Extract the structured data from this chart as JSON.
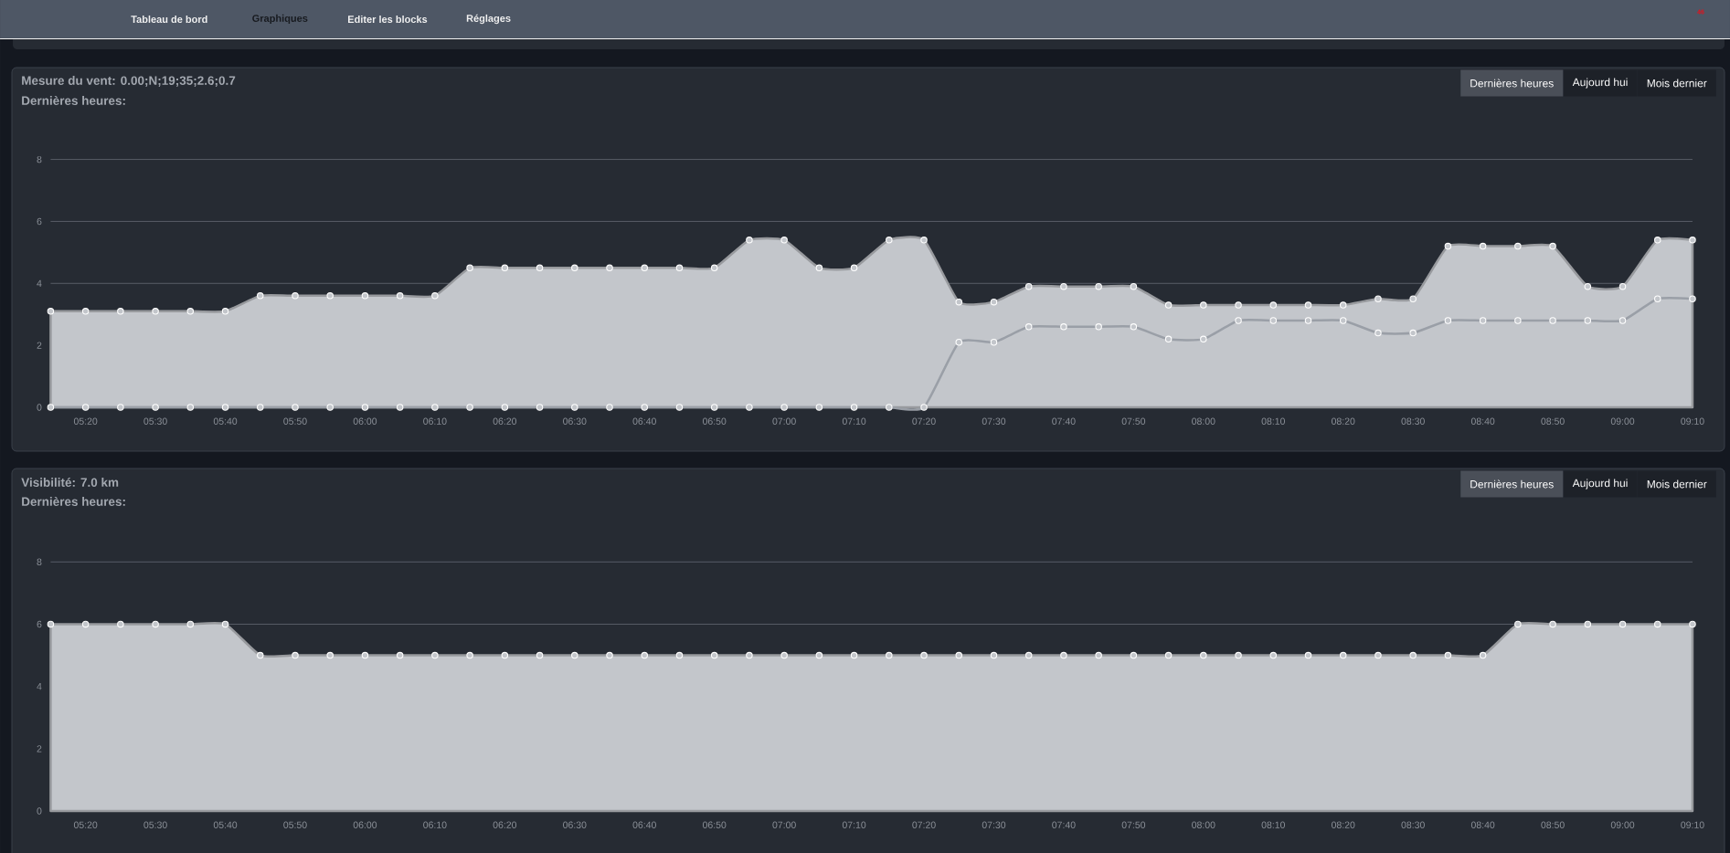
{
  "chart_data": [
    {
      "type": "other",
      "annotations": [
        "Tableau de bord",
        "Graphiques",
        "Editer les blocks",
        "Réglages",
        "46"
      ]
    },
    {
      "type": "area",
      "title": "Mesure du vent: 0.00;N;19;35;2.6;0.7",
      "subtitle": "Dernières heures:",
      "annotations": [
        "Dernières heures",
        "Aujourd hui",
        "Mois dernier"
      ],
      "categories": [
        null,
        "05:20",
        null,
        "05:30",
        null,
        "05:40",
        null,
        "05:50",
        null,
        "06:00",
        null,
        "06:10",
        null,
        "06:20",
        null,
        "06:30",
        null,
        "06:40",
        null,
        "06:50",
        null,
        "07:00",
        null,
        "07:10",
        null,
        "07:20",
        null,
        "07:30",
        null,
        "07:40",
        null,
        "07:50",
        null,
        "08:00",
        null,
        "08:10",
        null,
        "08:20",
        null,
        "08:30",
        null,
        "08:40",
        null,
        "08:50",
        null,
        "09:00",
        null,
        "09:10"
      ],
      "series": [
        {
          "color": "#c3c6cb",
          "values": [
            3.1,
            3.1,
            3.1,
            3.1,
            3.1,
            3.1,
            3.6,
            3.6,
            3.6,
            3.6,
            3.6,
            3.6,
            4.5,
            4.5,
            4.5,
            4.5,
            4.5,
            4.5,
            4.5,
            4.5,
            5.4,
            5.4,
            4.5,
            4.5,
            5.4,
            5.4,
            3.4,
            3.4,
            3.9,
            3.9,
            3.9,
            3.9,
            3.3,
            3.3,
            3.3,
            3.3,
            3.3,
            3.3,
            3.5,
            3.5,
            5.2,
            5.2,
            5.2,
            5.2,
            3.9,
            3.9,
            5.4,
            5.4
          ]
        },
        {
          "type": "line",
          "color": "#9a9fa7",
          "values": [
            0,
            0,
            0,
            0,
            0,
            0,
            0,
            0,
            0,
            0,
            0,
            0,
            0,
            0,
            0,
            0,
            0,
            0,
            0,
            0,
            0,
            0,
            0,
            0,
            0,
            0,
            2.1,
            2.1,
            2.6,
            2.6,
            2.6,
            2.6,
            2.2,
            2.2,
            2.8,
            2.8,
            2.8,
            2.8,
            2.4,
            2.4,
            2.8,
            2.8,
            2.8,
            2.8,
            2.8,
            2.8,
            3.5,
            3.5
          ]
        }
      ],
      "ylim": [
        0,
        8
      ],
      "yticks": [
        0,
        2,
        4,
        6,
        8
      ],
      "grid": "y",
      "marker": "circle",
      "line_style": "solid"
    },
    {
      "type": "area",
      "title": "Visibilité: 7.0 km",
      "subtitle": "Dernières heures:",
      "annotations": [
        "Dernières heures",
        "Aujourd hui",
        "Mois dernier"
      ],
      "categories": [
        null,
        "05:20",
        null,
        "05:30",
        null,
        "05:40",
        null,
        "05:50",
        null,
        "06:00",
        null,
        "06:10",
        null,
        "06:20",
        null,
        "06:30",
        null,
        "06:40",
        null,
        "06:50",
        null,
        "07:00",
        null,
        "07:10",
        null,
        "07:20",
        null,
        "07:30",
        null,
        "07:40",
        null,
        "07:50",
        null,
        "08:00",
        null,
        "08:10",
        null,
        "08:20",
        null,
        "08:30",
        null,
        "08:40",
        null,
        "08:50",
        null,
        "09:00",
        null,
        "09:10"
      ],
      "series": [
        {
          "color": "#c3c6cb",
          "values": [
            6,
            6,
            6,
            6,
            6,
            6,
            5,
            5,
            5,
            5,
            5,
            5,
            5,
            5,
            5,
            5,
            5,
            5,
            5,
            5,
            5,
            5,
            5,
            5,
            5,
            5,
            5,
            5,
            5,
            5,
            5,
            5,
            5,
            5,
            5,
            5,
            5,
            5,
            5,
            5,
            5,
            5,
            6,
            6,
            6,
            6,
            6,
            6
          ]
        }
      ],
      "ylim": [
        0,
        8
      ],
      "yticks": [
        0,
        2,
        4,
        6,
        8
      ],
      "grid": "y",
      "marker": "circle",
      "line_style": "solid"
    }
  ]
}
